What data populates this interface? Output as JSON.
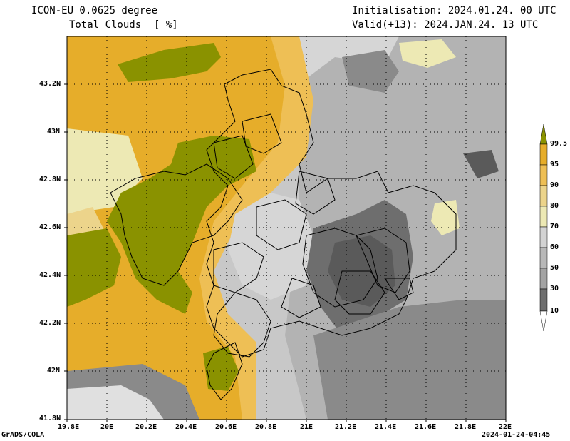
{
  "header": {
    "model": "ICON-EU 0.0625 degree",
    "field": "Total Clouds",
    "unit": "[ %]",
    "init": "Initialisation: 2024.01.24. 00 UTC",
    "valid": "Valid(+13): 2024.JAN.24. 13 UTC"
  },
  "footer": {
    "credit": "GrADS/COLA",
    "timestamp": "2024-01-24-04:45"
  },
  "axes": {
    "lon_labels": [
      "19.8E",
      "20E",
      "20.2E",
      "20.4E",
      "20.6E",
      "20.8E",
      "21E",
      "21.2E",
      "21.4E",
      "21.6E",
      "21.8E",
      "22E"
    ],
    "lat_labels": [
      "43.2N",
      "43N",
      "42.8N",
      "42.6N",
      "42.4N",
      "42.2N",
      "42N",
      "41.8N"
    ]
  },
  "legend": {
    "labels": [
      "99.5",
      "95",
      "90",
      "80",
      "70",
      "60",
      "50",
      "30",
      "10"
    ],
    "colors": [
      "#8a9200",
      "#e6ad2a",
      "#eebf55",
      "#ecd48b",
      "#ede9b4",
      "#d3d3d3",
      "#b8b8b8",
      "#a3a3a3",
      "#8a8a8a",
      "#6e6e6e",
      "#ffffff"
    ]
  }
}
